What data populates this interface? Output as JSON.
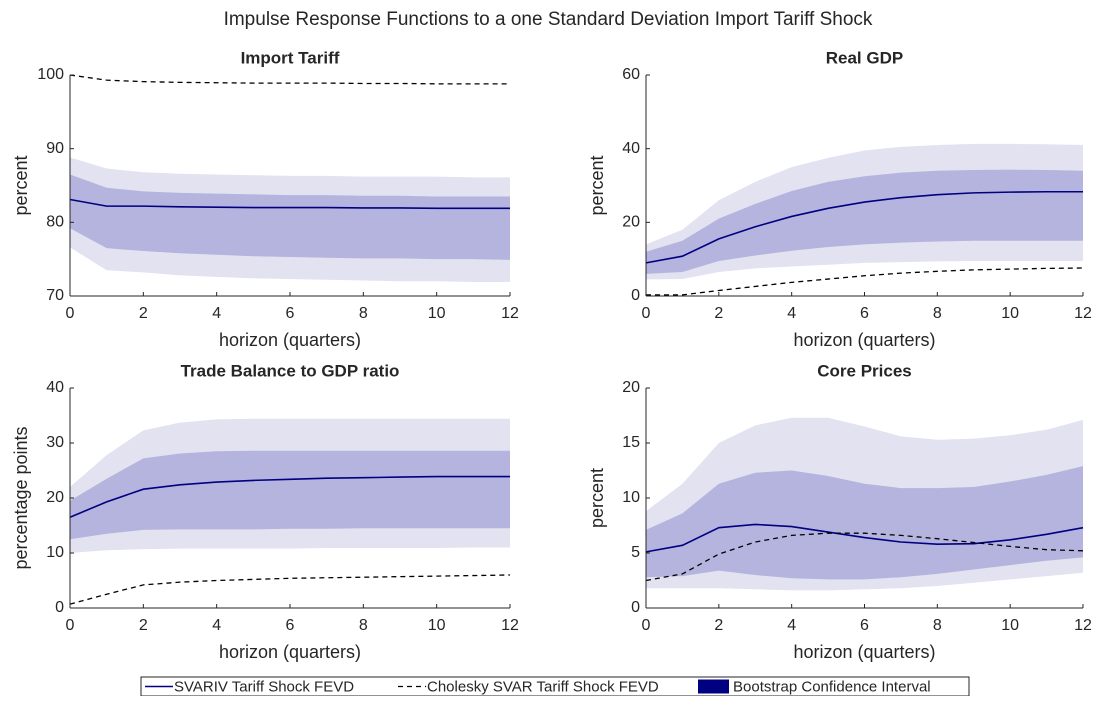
{
  "title": "Impulse Response Functions to a one Standard Deviation Import Tariff Shock",
  "legend": {
    "entries": [
      {
        "label": "SVARIV Tariff Shock FEVD",
        "color": "#000080",
        "kind": "line"
      },
      {
        "label": "Cholesky SVAR Tariff Shock FEVD",
        "color": "#000000",
        "kind": "dashed"
      },
      {
        "label": "Bootstrap Confidence Interval",
        "color": "#000080",
        "kind": "patch"
      }
    ]
  },
  "chart_data": [
    {
      "type": "line",
      "title": "Import Tariff",
      "xlabel": "horizon (quarters)",
      "ylabel": "percent",
      "x": [
        0,
        1,
        2,
        3,
        4,
        5,
        6,
        7,
        8,
        9,
        10,
        11,
        12
      ],
      "xlim": [
        0,
        12
      ],
      "xticks": [
        0,
        2,
        4,
        6,
        8,
        10,
        12
      ],
      "ylim": [
        70,
        100
      ],
      "yticks": [
        70,
        80,
        90,
        100
      ],
      "series": [
        {
          "color": "#000080",
          "values": [
            83.1,
            82.2,
            82.2,
            82.1,
            82.05,
            82.0,
            82.0,
            82.0,
            81.95,
            81.95,
            81.9,
            81.9,
            81.9
          ]
        },
        {
          "color": "#000000",
          "dashed": true,
          "values": [
            100,
            99.3,
            99.1,
            99.0,
            98.95,
            98.9,
            98.9,
            98.9,
            98.85,
            98.85,
            98.8,
            98.8,
            98.8
          ]
        }
      ],
      "bands": [
        {
          "color": "#e2e2f1",
          "lower": [
            76.6,
            73.5,
            73.2,
            72.8,
            72.6,
            72.4,
            72.3,
            72.2,
            72.1,
            72.0,
            72.0,
            71.9,
            71.9
          ],
          "upper": [
            88.8,
            87.3,
            86.8,
            86.6,
            86.5,
            86.4,
            86.3,
            86.3,
            86.2,
            86.2,
            86.2,
            86.1,
            86.1
          ]
        },
        {
          "color": "#b4b4de",
          "lower": [
            79.2,
            76.5,
            76.1,
            75.8,
            75.6,
            75.4,
            75.3,
            75.2,
            75.1,
            75.1,
            75.0,
            75.0,
            74.9
          ],
          "upper": [
            86.5,
            84.7,
            84.2,
            84.0,
            83.9,
            83.8,
            83.7,
            83.7,
            83.6,
            83.6,
            83.5,
            83.5,
            83.5
          ]
        }
      ]
    },
    {
      "type": "line",
      "title": "Real GDP",
      "xlabel": "horizon (quarters)",
      "ylabel": "percent",
      "x": [
        0,
        1,
        2,
        3,
        4,
        5,
        6,
        7,
        8,
        9,
        10,
        11,
        12
      ],
      "xlim": [
        0,
        12
      ],
      "xticks": [
        0,
        2,
        4,
        6,
        8,
        10,
        12
      ],
      "ylim": [
        0,
        60
      ],
      "yticks": [
        0,
        20,
        40,
        60
      ],
      "series": [
        {
          "color": "#000080",
          "values": [
            9,
            10.8,
            15.5,
            18.8,
            21.6,
            23.8,
            25.5,
            26.7,
            27.5,
            28,
            28.2,
            28.3,
            28.3
          ]
        },
        {
          "color": "#000000",
          "dashed": true,
          "values": [
            0.3,
            0.3,
            1.5,
            2.6,
            3.7,
            4.6,
            5.5,
            6.2,
            6.7,
            7.1,
            7.3,
            7.5,
            7.6
          ]
        }
      ],
      "bands": [
        {
          "color": "#e2e2f1",
          "lower": [
            4.5,
            4.6,
            6.5,
            7.5,
            8,
            8.5,
            9,
            9.2,
            9.4,
            9.5,
            9.5,
            9.5,
            9.5
          ],
          "upper": [
            14,
            18,
            26,
            31,
            35,
            37.5,
            39.5,
            40.5,
            41,
            41.3,
            41.3,
            41.2,
            41
          ]
        },
        {
          "color": "#b4b4de",
          "lower": [
            6,
            6.5,
            9.5,
            11,
            12.3,
            13.3,
            14,
            14.5,
            14.8,
            15,
            15,
            15,
            15
          ],
          "upper": [
            12,
            15,
            21,
            25,
            28.5,
            31,
            32.5,
            33.5,
            34,
            34.2,
            34.3,
            34.2,
            34
          ]
        }
      ]
    },
    {
      "type": "line",
      "title": "Trade Balance to GDP ratio",
      "xlabel": "horizon (quarters)",
      "ylabel": "percentage points",
      "x": [
        0,
        1,
        2,
        3,
        4,
        5,
        6,
        7,
        8,
        9,
        10,
        11,
        12
      ],
      "xlim": [
        0,
        12
      ],
      "xticks": [
        0,
        2,
        4,
        6,
        8,
        10,
        12
      ],
      "ylim": [
        0,
        40
      ],
      "yticks": [
        0,
        10,
        20,
        30,
        40
      ],
      "series": [
        {
          "color": "#000080",
          "values": [
            16.5,
            19.3,
            21.6,
            22.4,
            22.9,
            23.2,
            23.4,
            23.6,
            23.7,
            23.8,
            23.9,
            23.9,
            23.9
          ]
        },
        {
          "color": "#000000",
          "dashed": true,
          "values": [
            0.7,
            2.5,
            4.2,
            4.7,
            5.0,
            5.2,
            5.4,
            5.5,
            5.6,
            5.7,
            5.8,
            5.9,
            6.0
          ]
        }
      ],
      "bands": [
        {
          "color": "#e2e2f1",
          "lower": [
            10,
            10.5,
            10.7,
            10.8,
            10.8,
            10.8,
            10.8,
            10.9,
            10.9,
            10.9,
            10.9,
            11,
            11
          ],
          "upper": [
            22,
            27.8,
            32.3,
            33.7,
            34.3,
            34.4,
            34.4,
            34.4,
            34.4,
            34.4,
            34.4,
            34.4,
            34.4
          ]
        },
        {
          "color": "#b4b4de",
          "lower": [
            12.5,
            13.5,
            14.2,
            14.3,
            14.3,
            14.3,
            14.4,
            14.4,
            14.5,
            14.5,
            14.5,
            14.5,
            14.5
          ],
          "upper": [
            19.5,
            23.5,
            27.2,
            28.1,
            28.5,
            28.6,
            28.6,
            28.6,
            28.6,
            28.6,
            28.6,
            28.6,
            28.6
          ]
        }
      ]
    },
    {
      "type": "line",
      "title": "Core Prices",
      "xlabel": "horizon (quarters)",
      "ylabel": "percent",
      "x": [
        0,
        1,
        2,
        3,
        4,
        5,
        6,
        7,
        8,
        9,
        10,
        11,
        12
      ],
      "xlim": [
        0,
        12
      ],
      "xticks": [
        0,
        2,
        4,
        6,
        8,
        10,
        12
      ],
      "ylim": [
        0,
        20
      ],
      "yticks": [
        0,
        5,
        10,
        15,
        20
      ],
      "series": [
        {
          "color": "#000080",
          "values": [
            5.1,
            5.7,
            7.3,
            7.6,
            7.4,
            6.9,
            6.4,
            6.0,
            5.8,
            5.85,
            6.2,
            6.7,
            7.3
          ]
        },
        {
          "color": "#000000",
          "dashed": true,
          "values": [
            2.5,
            3.1,
            4.9,
            6.0,
            6.6,
            6.8,
            6.8,
            6.6,
            6.3,
            5.95,
            5.6,
            5.3,
            5.2
          ]
        }
      ],
      "bands": [
        {
          "color": "#e2e2f1",
          "lower": [
            1.8,
            1.8,
            1.8,
            1.7,
            1.6,
            1.6,
            1.7,
            1.8,
            2.0,
            2.3,
            2.6,
            2.9,
            3.2
          ],
          "upper": [
            8.8,
            11.3,
            15.0,
            16.6,
            17.3,
            17.3,
            16.5,
            15.6,
            15.3,
            15.4,
            15.7,
            16.2,
            17.1
          ]
        },
        {
          "color": "#b4b4de",
          "lower": [
            2.8,
            2.9,
            3.4,
            3.0,
            2.7,
            2.6,
            2.6,
            2.8,
            3.1,
            3.5,
            3.9,
            4.3,
            4.6
          ],
          "upper": [
            7.1,
            8.6,
            11.3,
            12.3,
            12.5,
            12.0,
            11.3,
            10.9,
            10.9,
            11.0,
            11.5,
            12.1,
            12.9
          ]
        }
      ]
    }
  ]
}
